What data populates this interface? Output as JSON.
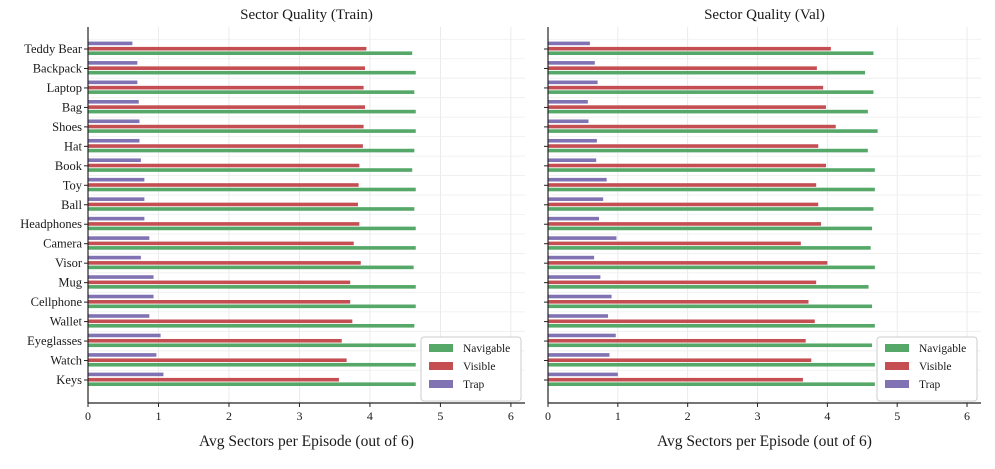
{
  "chart_data": [
    {
      "type": "bar",
      "orientation": "horizontal",
      "title": "Sector Quality (Train)",
      "xlabel": "Avg Sectors per Episode (out of 6)",
      "ylabel": "",
      "xlim": [
        0,
        6.2
      ],
      "xticks": [
        "0",
        "1",
        "2",
        "3",
        "4",
        "5",
        "6"
      ],
      "grid": true,
      "legend_position": "lower-right",
      "categories": [
        "Teddy Bear",
        "Backpack",
        "Laptop",
        "Bag",
        "Shoes",
        "Hat",
        "Book",
        "Toy",
        "Ball",
        "Headphones",
        "Camera",
        "Visor",
        "Mug",
        "Cellphone",
        "Wallet",
        "Eyeglasses",
        "Watch",
        "Keys"
      ],
      "series": [
        {
          "name": "Navigable",
          "color": "#55a868",
          "values": [
            4.6,
            4.65,
            4.63,
            4.65,
            4.65,
            4.63,
            4.6,
            4.65,
            4.63,
            4.65,
            4.65,
            4.62,
            4.65,
            4.65,
            4.63,
            4.65,
            4.65,
            4.65
          ]
        },
        {
          "name": "Visible",
          "color": "#c44e52",
          "values": [
            3.95,
            3.93,
            3.91,
            3.93,
            3.91,
            3.9,
            3.85,
            3.84,
            3.83,
            3.85,
            3.77,
            3.87,
            3.72,
            3.72,
            3.75,
            3.6,
            3.67,
            3.56
          ]
        },
        {
          "name": "Trap",
          "color": "#8172b3",
          "values": [
            0.63,
            0.7,
            0.7,
            0.72,
            0.73,
            0.73,
            0.75,
            0.8,
            0.8,
            0.8,
            0.87,
            0.75,
            0.93,
            0.93,
            0.87,
            1.03,
            0.97,
            1.07
          ]
        }
      ]
    },
    {
      "type": "bar",
      "orientation": "horizontal",
      "title": "Sector Quality (Val)",
      "xlabel": "Avg Sectors per Episode (out of 6)",
      "ylabel": "",
      "xlim": [
        0,
        6.2
      ],
      "xticks": [
        "0",
        "1",
        "2",
        "3",
        "4",
        "5",
        "6"
      ],
      "grid": true,
      "legend_position": "lower-right",
      "categories": [
        "Teddy Bear",
        "Backpack",
        "Laptop",
        "Bag",
        "Shoes",
        "Hat",
        "Book",
        "Toy",
        "Ball",
        "Headphones",
        "Camera",
        "Visor",
        "Mug",
        "Cellphone",
        "Wallet",
        "Eyeglasses",
        "Watch",
        "Keys"
      ],
      "series": [
        {
          "name": "Navigable",
          "color": "#55a868",
          "values": [
            4.66,
            4.54,
            4.66,
            4.58,
            4.72,
            4.58,
            4.68,
            4.68,
            4.66,
            4.64,
            4.62,
            4.68,
            4.59,
            4.64,
            4.68,
            4.64,
            4.68,
            4.68
          ]
        },
        {
          "name": "Visible",
          "color": "#c44e52",
          "values": [
            4.05,
            3.85,
            3.94,
            3.98,
            4.12,
            3.87,
            3.98,
            3.84,
            3.87,
            3.91,
            3.62,
            4.0,
            3.84,
            3.73,
            3.82,
            3.69,
            3.77,
            3.65
          ]
        },
        {
          "name": "Trap",
          "color": "#8172b3",
          "values": [
            0.6,
            0.67,
            0.71,
            0.57,
            0.58,
            0.7,
            0.69,
            0.84,
            0.79,
            0.73,
            0.98,
            0.66,
            0.75,
            0.91,
            0.86,
            0.97,
            0.88,
            1.0
          ]
        }
      ]
    }
  ]
}
